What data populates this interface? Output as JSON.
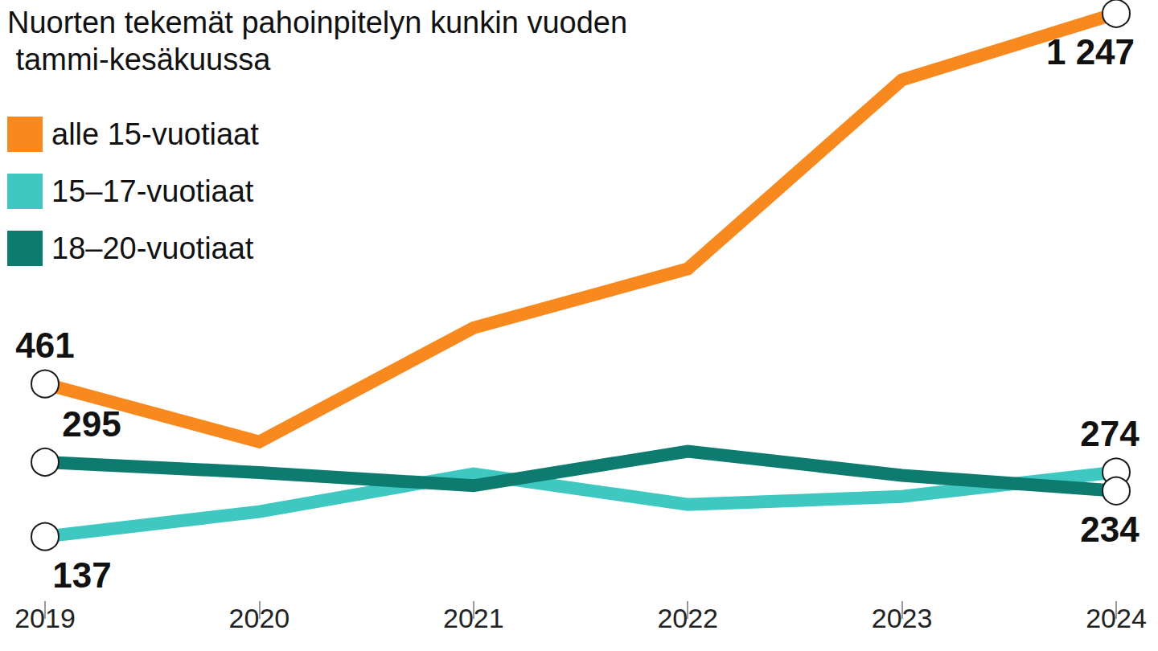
{
  "chart_data": {
    "type": "line",
    "title": "Nuorten tekemät pahoinpitelyn kunkin vuoden tammi-kesäkuussa",
    "categories": [
      "2019",
      "2020",
      "2021",
      "2022",
      "2023",
      "2024"
    ],
    "series": [
      {
        "name": "alle 15-vuotiaat",
        "color": "#f7891f",
        "values": [
          461,
          338,
          580,
          705,
          1106,
          1247
        ],
        "value_labels": [
          "461",
          null,
          null,
          null,
          null,
          "1 247"
        ]
      },
      {
        "name": "15–17-vuotiaat",
        "color": "#3fc8c1",
        "values": [
          137,
          190,
          270,
          205,
          222,
          274
        ],
        "value_labels": [
          "137",
          null,
          null,
          null,
          null,
          "274"
        ]
      },
      {
        "name": "18–20-vuotiaat",
        "color": "#0e7b71",
        "values": [
          295,
          273,
          245,
          318,
          267,
          234
        ],
        "value_labels": [
          "295",
          null,
          null,
          null,
          null,
          "234"
        ]
      }
    ],
    "ylim": [
      0,
      1250
    ],
    "grid": false,
    "legend": "upper left",
    "data_labels": true,
    "tick_labels": "x",
    "marker": "circle"
  }
}
